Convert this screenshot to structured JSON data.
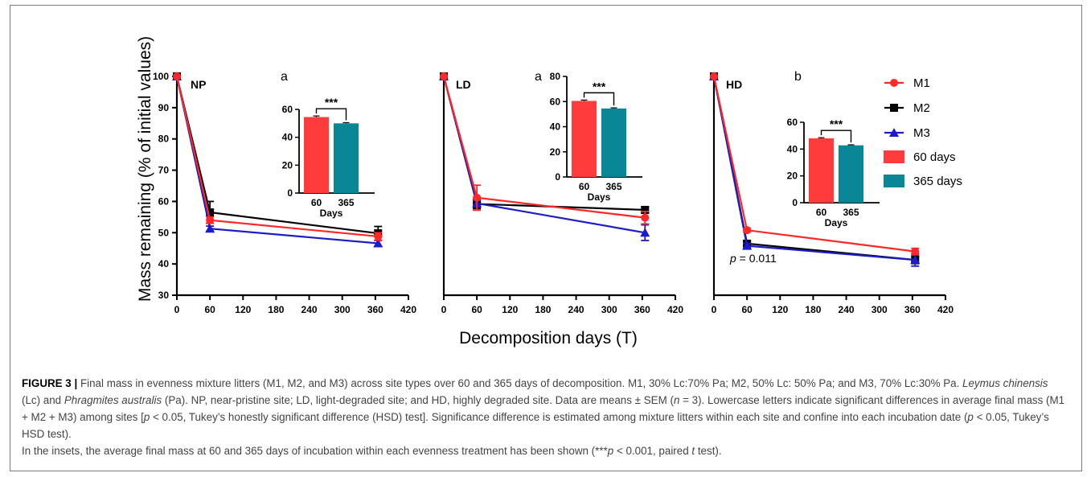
{
  "y_label": "Mass remaining (% of initial values)",
  "x_label": "Decomposition days (T)",
  "inset_xlabel": "Days",
  "legend": [
    {
      "label": "M1",
      "color": "#ff2828",
      "marker": "circle"
    },
    {
      "label": "M2",
      "color": "#000000",
      "marker": "square"
    },
    {
      "label": "M3",
      "color": "#1c1cc8",
      "marker": "triangle"
    },
    {
      "label": "60 days",
      "color": "#ff3b3b",
      "marker": "rect"
    },
    {
      "label": "365 days",
      "color": "#0a8797",
      "marker": "rect"
    }
  ],
  "chart_data": [
    {
      "type": "line",
      "panel": "NP",
      "letter": "a",
      "x": [
        0,
        60,
        365
      ],
      "xticks": [
        0,
        60,
        120,
        180,
        240,
        300,
        360,
        420
      ],
      "yticks": [
        30,
        40,
        50,
        60,
        70,
        80,
        90,
        100
      ],
      "xlim": [
        0,
        420
      ],
      "ylim": [
        30,
        100
      ],
      "series": [
        {
          "name": "M1",
          "values": [
            100,
            54,
            48.8
          ],
          "err": [
            0,
            1.0,
            1.2
          ]
        },
        {
          "name": "M2",
          "values": [
            100,
            56.5,
            49.8
          ],
          "err": [
            0,
            3.5,
            2.2
          ]
        },
        {
          "name": "M3",
          "values": [
            100,
            51.3,
            46.6
          ],
          "err": [
            0,
            0.8,
            0.9
          ]
        }
      ],
      "note": "",
      "inset": {
        "type": "bar",
        "categories": [
          "60",
          "365"
        ],
        "values": [
          54.5,
          50.0
        ],
        "err": [
          0.8,
          0.5
        ],
        "yticks": [
          0,
          20,
          40,
          60
        ],
        "ylim": [
          0,
          60
        ],
        "significance": "***"
      }
    },
    {
      "type": "line",
      "panel": "LD",
      "letter": "a",
      "x": [
        0,
        60,
        365
      ],
      "xticks": [
        0,
        60,
        120,
        180,
        240,
        300,
        360,
        420
      ],
      "yticks": [],
      "xlim": [
        0,
        420
      ],
      "ylim": [
        30,
        100
      ],
      "series": [
        {
          "name": "M1",
          "values": [
            100,
            61.2,
            54.8
          ],
          "err": [
            0,
            4.0,
            2.0
          ]
        },
        {
          "name": "M2",
          "values": [
            100,
            59.2,
            57.3
          ],
          "err": [
            0,
            1.5,
            1.0
          ]
        },
        {
          "name": "M3",
          "values": [
            100,
            59.4,
            50.0
          ],
          "err": [
            0,
            1.0,
            2.5
          ]
        }
      ],
      "note": "",
      "inset": {
        "type": "bar",
        "categories": [
          "60",
          "365"
        ],
        "values": [
          60.5,
          54.5
        ],
        "err": [
          0.7,
          0.5
        ],
        "yticks": [
          0,
          20,
          40,
          60,
          80
        ],
        "ylim": [
          0,
          80
        ],
        "significance": "***"
      }
    },
    {
      "type": "line",
      "panel": "HD",
      "letter": "b",
      "x": [
        0,
        60,
        365
      ],
      "xticks": [
        0,
        60,
        120,
        180,
        240,
        300,
        360,
        420
      ],
      "yticks": [],
      "xlim": [
        0,
        420
      ],
      "ylim": [
        30,
        100
      ],
      "series": [
        {
          "name": "M1",
          "values": [
            100,
            50.8,
            44.0
          ],
          "err": [
            0,
            0.6,
            1.0
          ]
        },
        {
          "name": "M2",
          "values": [
            100,
            46.5,
            41.3
          ],
          "err": [
            0,
            0.8,
            1.2
          ]
        },
        {
          "name": "M3",
          "values": [
            100,
            45.8,
            41.3
          ],
          "err": [
            0,
            0.8,
            2.0
          ]
        }
      ],
      "note": "p = 0.011",
      "inset": {
        "type": "bar",
        "categories": [
          "60",
          "365"
        ],
        "values": [
          48.0,
          42.8
        ],
        "err": [
          0.5,
          0.4
        ],
        "yticks": [
          0,
          20,
          40,
          60
        ],
        "ylim": [
          0,
          60
        ],
        "significance": "***"
      }
    }
  ],
  "caption": {
    "label": "FIGURE 3",
    "sep": " | ",
    "p1": "Final mass in evenness mixture litters (M1, M2, and M3) across site types over 60 and 365 days of decomposition. M1, 30% Lc:70% Pa; M2, 50% Lc: 50% Pa; and M3, 70% Lc:30% Pa. ",
    "species1": "Leymus chinensis",
    "p2": " (Lc) and ",
    "species2": "Phragmites australis",
    "p3": " (Pa). NP, near-pristine site; LD, light-degraded site; and HD, highly degraded site. Data are means ± SEM (",
    "n": "n",
    "p4": " = 3). Lowercase letters indicate significant differences in average final mass (M1 + M2 + M3) among sites [",
    "pa": "p",
    "p5": " < 0.05, Tukey’s honestly significant difference (HSD) test]. Significance difference is estimated among mixture litters within each site and confine into each incubation date (",
    "pb": "p",
    "p6": " < 0.05, Tukey’s HSD test).",
    "p7": "In the insets, the average final mass at 60 and 365 days of incubation within each evenness treatment has been shown (***",
    "pc": "p",
    "p8": " < 0.001, paired ",
    "t": "t",
    "p9": " test)."
  }
}
